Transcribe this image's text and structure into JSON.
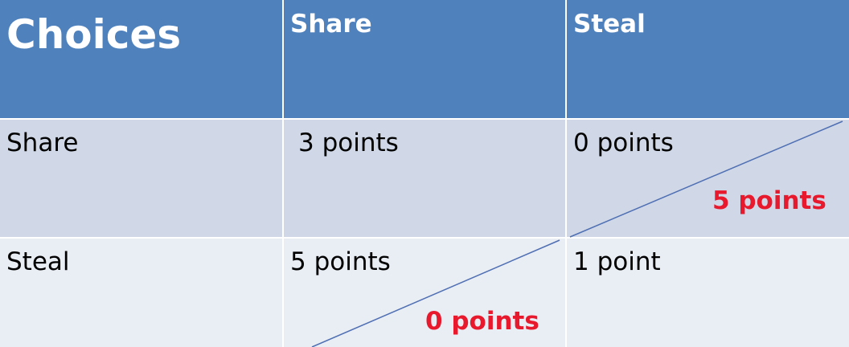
{
  "table": {
    "header": {
      "corner": "Choices",
      "col1": "Share",
      "col2": "Steal"
    },
    "rows": [
      {
        "label": "Share",
        "c1": {
          "main": "3 points"
        },
        "c2": {
          "main": "0 points",
          "other": "5 points"
        }
      },
      {
        "label": "Steal",
        "c1": {
          "main": "5 points",
          "other": "0 points"
        },
        "c2": {
          "main": "1 point"
        }
      }
    ]
  },
  "colors": {
    "header_bg": "#4f81bd",
    "row1_bg": "#d0d8e8",
    "row2_bg": "#e9edf4",
    "highlight_text": "#e8192c",
    "diagonal_line": "#4f6fb3"
  }
}
